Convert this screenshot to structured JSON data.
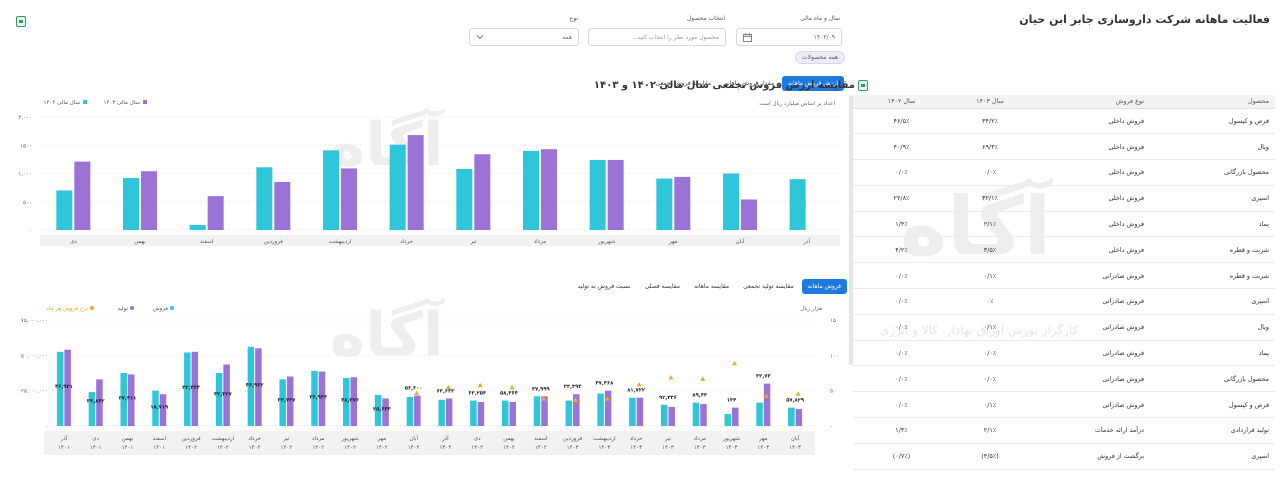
{
  "page": {
    "title": "فعالیت ماهانه شرکت داروسازی جابر ابن حیان"
  },
  "filters": {
    "year_label": "سال و ماه مالی",
    "year_value": "۱۴۰۳/۰۹",
    "product_label": "انتخاب محصول",
    "product_placeholder": "محصول مورد نظر را انتخاب کنید...",
    "type_label": "نوع",
    "type_value": "همه",
    "chip": "همه محصولات"
  },
  "watermark": {
    "brand": "آگاه",
    "tagline": "کارگزار بورس اوراق بهادار، کالا و انرژی"
  },
  "top_chart": {
    "tabs": [
      "ارزش فروش ماهانه",
      "مقدار فروش ماهانه",
      "مقایسه فروش تجمعی"
    ],
    "active_tab": 0,
    "note": "اعداد بر اساس میلیارد ریال است",
    "legend": [
      "سال مالی ۱۴۰۳",
      "سال مالی ۱۴۰۲"
    ],
    "colors": {
      "y1402": "#2ec6d8",
      "y1403": "#9b72d6"
    },
    "y_ticks": [
      "۲,۰۰۰",
      "۱۵۰۰",
      "۱,۰۰۰",
      "۵۰۰",
      "۰"
    ],
    "ylim": [
      0,
      2000
    ],
    "categories": [
      "دی",
      "بهمن",
      "اسفند",
      "فروردین",
      "اردیبهشت",
      "خرداد",
      "تیر",
      "مرداد",
      "شهریور",
      "مهر",
      "آبان",
      "آذر"
    ],
    "series": [
      {
        "name": "سال مالی ۱۴۰۲",
        "values": [
          700,
          920,
          90,
          1110,
          1410,
          1510,
          1080,
          1400,
          1240,
          910,
          1000,
          900
        ]
      },
      {
        "name": "سال مالی ۱۴۰۳",
        "values": [
          1210,
          1040,
          600,
          850,
          1090,
          1680,
          1340,
          1430,
          1240,
          940,
          540,
          null
        ]
      }
    ]
  },
  "bottom_chart": {
    "tabs": [
      "فروش ماهانه",
      "مقایسه تولید تجمعی",
      "مقایسه ماهانه",
      "مقایسه فصلی",
      "نسبت فروش به تولید"
    ],
    "active_tab": 0,
    "unit": "هزار ریال",
    "legend": [
      "فروش",
      "تولید",
      "نرخ فروش هر ماه"
    ],
    "colors": {
      "sales": "#2ec6d8",
      "production": "#9b72d6",
      "rate": "#f5a623"
    },
    "y_left_ticks": [
      "۷۵,۰۰۰,۰۰۰",
      "۵۰,۰۰۰,۰۰۰",
      "۲۵,۰۰۰,۰۰۰",
      "۰"
    ],
    "y_right_ticks": [
      "۱۵۰",
      "۱۰۰",
      "۵۰",
      "۰"
    ],
    "ylim_left": [
      0,
      75000000
    ],
    "ylim_right": [
      0,
      150
    ],
    "categories": [
      [
        "آذر",
        "۱۴۰۱"
      ],
      [
        "دی",
        "۱۴۰۱"
      ],
      [
        "بهمن",
        "۱۴۰۱"
      ],
      [
        "اسفند",
        "۱۴۰۱"
      ],
      [
        "فروردین",
        "۱۴۰۲"
      ],
      [
        "اردیبهشت",
        "۱۴۰۲"
      ],
      [
        "خرداد",
        "۱۴۰۲"
      ],
      [
        "تیر",
        "۱۴۰۲"
      ],
      [
        "مرداد",
        "۱۴۰۲"
      ],
      [
        "شهریور",
        "۱۴۰۲"
      ],
      [
        "مهر",
        "۱۴۰۲"
      ],
      [
        "آبان",
        "۱۴۰۲"
      ],
      [
        "آذر",
        "۱۴۰۲"
      ],
      [
        "دی",
        "۱۴۰۲"
      ],
      [
        "بهمن",
        "۱۴۰۲"
      ],
      [
        "اسفند",
        "۱۴۰۲"
      ],
      [
        "فروردین",
        "۱۴۰۳"
      ],
      [
        "اردیبهشت",
        "۱۴۰۳"
      ],
      [
        "خرداد",
        "۱۴۰۳"
      ],
      [
        "تیر",
        "۱۴۰۳"
      ],
      [
        "مرداد",
        "۱۴۰۳"
      ],
      [
        "شهریور",
        "۱۴۰۳"
      ],
      [
        "مهر",
        "۱۴۰۳"
      ],
      [
        "آبان",
        "۱۴۰۳"
      ]
    ],
    "sales": [
      52500000,
      24000000,
      37500000,
      25000000,
      52000000,
      37500000,
      56000000,
      33000000,
      39000000,
      34000000,
      22000000,
      20500000,
      18500000,
      18000000,
      18000000,
      21000000,
      18000000,
      23000000,
      20000000,
      15000000,
      16500000,
      8500000,
      16500000,
      13000000
    ],
    "production": [
      54000000,
      33000000,
      36500000,
      22500000,
      52500000,
      43500000,
      55000000,
      35000000,
      38500000,
      34500000,
      19500000,
      21500000,
      19500000,
      17000000,
      17000000,
      21000000,
      22500000,
      25000000,
      20000000,
      13500000,
      15500000,
      13000000,
      30000000,
      12000000
    ],
    "rate": [
      null,
      null,
      null,
      null,
      null,
      null,
      null,
      null,
      null,
      null,
      null,
      null,
      null,
      null,
      null,
      null,
      null,
      null,
      null,
      null,
      null,
      null,
      null,
      null
    ],
    "sales_labels": [
      "۴۶,۹۲۱",
      "۳۳,۸۴۲",
      "۳۷,۴۱۱",
      "۱۸,۷۱۹",
      "۴۳,۴۴۴",
      "۴۲,۳۲۷",
      "۴۶,۹۳۲",
      "۳۲,۷۳۷",
      "۳۶,۹۳۴",
      "۴۸,۳۷۶",
      "۲۵,۶۴۴",
      "۵۶,۳۰۰",
      "۶۳,۶۳۳",
      "۶۳,۲۵۳",
      "۵۸,۴۶۴",
      "۳۷,۹۹۹",
      "۳۳,۳۹۴",
      "۴۷,۴۶۸",
      "۸۱,۷۲۲",
      "۹۲,۳۳۶",
      "۸۹,۴۳",
      "۱۳۴",
      "۳۲,۷۳",
      "۵۷,۸۲۹"
    ],
    "rate_points": [
      [
        11,
        46
      ],
      [
        12,
        54
      ],
      [
        13,
        57
      ],
      [
        14,
        54
      ],
      [
        15,
        38
      ],
      [
        16,
        36
      ],
      [
        17,
        38
      ],
      [
        18,
        58
      ],
      [
        19,
        68
      ],
      [
        20,
        66
      ],
      [
        21,
        88
      ],
      [
        22,
        42
      ],
      [
        23,
        45
      ]
    ]
  },
  "table": {
    "title": "مقایسه ارزش فروش تجمعی سال مالی ۱۴۰۲ و ۱۴۰۳",
    "headers": [
      "محصول",
      "نوع فروش",
      "سال ۱۴۰۳",
      "سال ۱۴۰۲"
    ],
    "rows": [
      [
        "قرص و کپسول",
        "فروش داخلی",
        "۳۴/۲٪",
        "۴۶/۵٪"
      ],
      [
        "ویال",
        "فروش داخلی",
        "۶۹/۳٪",
        "۴۰/۹٪"
      ],
      [
        "محصول بازرگانی",
        "فروش داخلی",
        "۰/۰٪",
        "۰/۰٪"
      ],
      [
        "اسپری",
        "فروش داخلی",
        "۳۲/۱٪",
        "۲۲/۸٪"
      ],
      [
        "پماد",
        "فروش داخلی",
        "۲/۱٪",
        "۱/۴٪"
      ],
      [
        "شربت و قطره",
        "فروش داخلی",
        "۳/۵٪",
        "۴/۲٪"
      ],
      [
        "شربت و قطره",
        "فروش صادراتی",
        "۰/۱٪",
        "۰/۰٪"
      ],
      [
        "اسپری",
        "فروش صادراتی",
        "۰٪",
        "۰/۰٪"
      ],
      [
        "ویال",
        "فروش صادراتی",
        "۰/۱٪",
        "۰/۰٪"
      ],
      [
        "پماد",
        "فروش صادراتی",
        "۰/۰٪",
        "۰/۰٪"
      ],
      [
        "محصول بازرگانی",
        "فروش صادراتی",
        "۰/۰٪",
        "۰/۰٪"
      ],
      [
        "قرص و کپسول",
        "فروش صادراتی",
        "۰/۱٪",
        "۰/۰٪"
      ],
      [
        "تولید قراردادی",
        "درآمد ارائه خدمات",
        "۲/۱٪",
        "۱/۴٪"
      ],
      [
        "اسپری",
        "برگشت از فروش",
        "(۴/۵٪)",
        "(۰/۷٪)"
      ]
    ]
  }
}
